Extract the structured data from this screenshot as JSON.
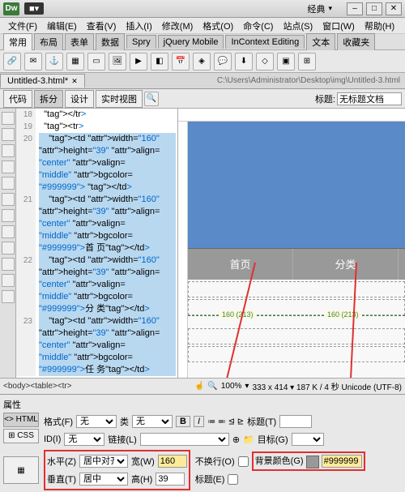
{
  "app": {
    "logo": "Dw",
    "layout_dropdown": "经典"
  },
  "window_buttons": {
    "min": "–",
    "max": "□",
    "close": "✕"
  },
  "menu": [
    "文件(F)",
    "编辑(E)",
    "查看(V)",
    "插入(I)",
    "修改(M)",
    "格式(O)",
    "命令(C)",
    "站点(S)",
    "窗口(W)",
    "帮助(H)"
  ],
  "insert_tabs": [
    "常用",
    "布局",
    "表单",
    "数据",
    "Spry",
    "jQuery Mobile",
    "InContext Editing",
    "文本",
    "收藏夹"
  ],
  "doc_tab": "Untitled-3.html*",
  "doc_path": "C:\\Users\\Administrator\\Desktop\\img\\Untitled-3.html",
  "view_buttons": [
    "代码",
    "拆分",
    "设计",
    "实时视图"
  ],
  "title_label": "标题:",
  "title_value": "无标题文档",
  "line_numbers": [
    "18",
    "19",
    "20",
    "",
    "",
    "",
    "",
    "21",
    "",
    "",
    "",
    "",
    "22",
    "",
    "",
    "",
    "",
    "23",
    "",
    "",
    "",
    ""
  ],
  "code": [
    "  </tr>",
    "  <tr>",
    "    <td width=\"160\"",
    "height=\"39\" align=",
    "\"center\" valign=",
    "\"middle\" bgcolor=",
    "\"#999999\">&nbsp;</td>",
    "    <td width=\"160\"",
    "height=\"39\" align=",
    "\"center\" valign=",
    "\"middle\" bgcolor=",
    "\"#999999\">首 页</td>",
    "    <td width=\"160\"",
    "height=\"39\" align=",
    "\"center\" valign=",
    "\"middle\" bgcolor=",
    "\"#999999\">分 类</td>",
    "    <td width=\"160\"",
    "height=\"39\" align=",
    "\"center\" valign=",
    "\"middle\" bgcolor=",
    "\"#999999\">任 务</td>",
    "    <td width=\"160\""
  ],
  "preview_cells": [
    "首页",
    "分类"
  ],
  "ruler_marks": [
    "160 (213)",
    "160 (213)"
  ],
  "tag_path": "<body><table><tr>",
  "zoom": "100%",
  "status_info": "333 x 414 ▾  187 K / 4 秒 Unicode (UTF-8)",
  "props": {
    "title": "属性",
    "tabs": [
      "HTML",
      "CSS"
    ],
    "format_label": "格式(F)",
    "format_value": "无",
    "class_label": "类",
    "class_value": "无",
    "id_label": "ID(I)",
    "id_value": "无",
    "link_label": "链接(L)",
    "link_value": "",
    "title2_label": "标题(T)",
    "target_label": "目标(G)",
    "halign_label": "水平(Z)",
    "halign_value": "居中对齐",
    "valign_label": "垂直(T)",
    "valign_value": "居中",
    "width_label": "宽(W)",
    "width_value": "160",
    "height_label": "高(H)",
    "height_value": "39",
    "nowrap_label": "不换行(O)",
    "header_label": "标题(E)",
    "bg_label": "背景颜色(G)",
    "bg_value": "#999999",
    "bg_color": "#999999"
  }
}
